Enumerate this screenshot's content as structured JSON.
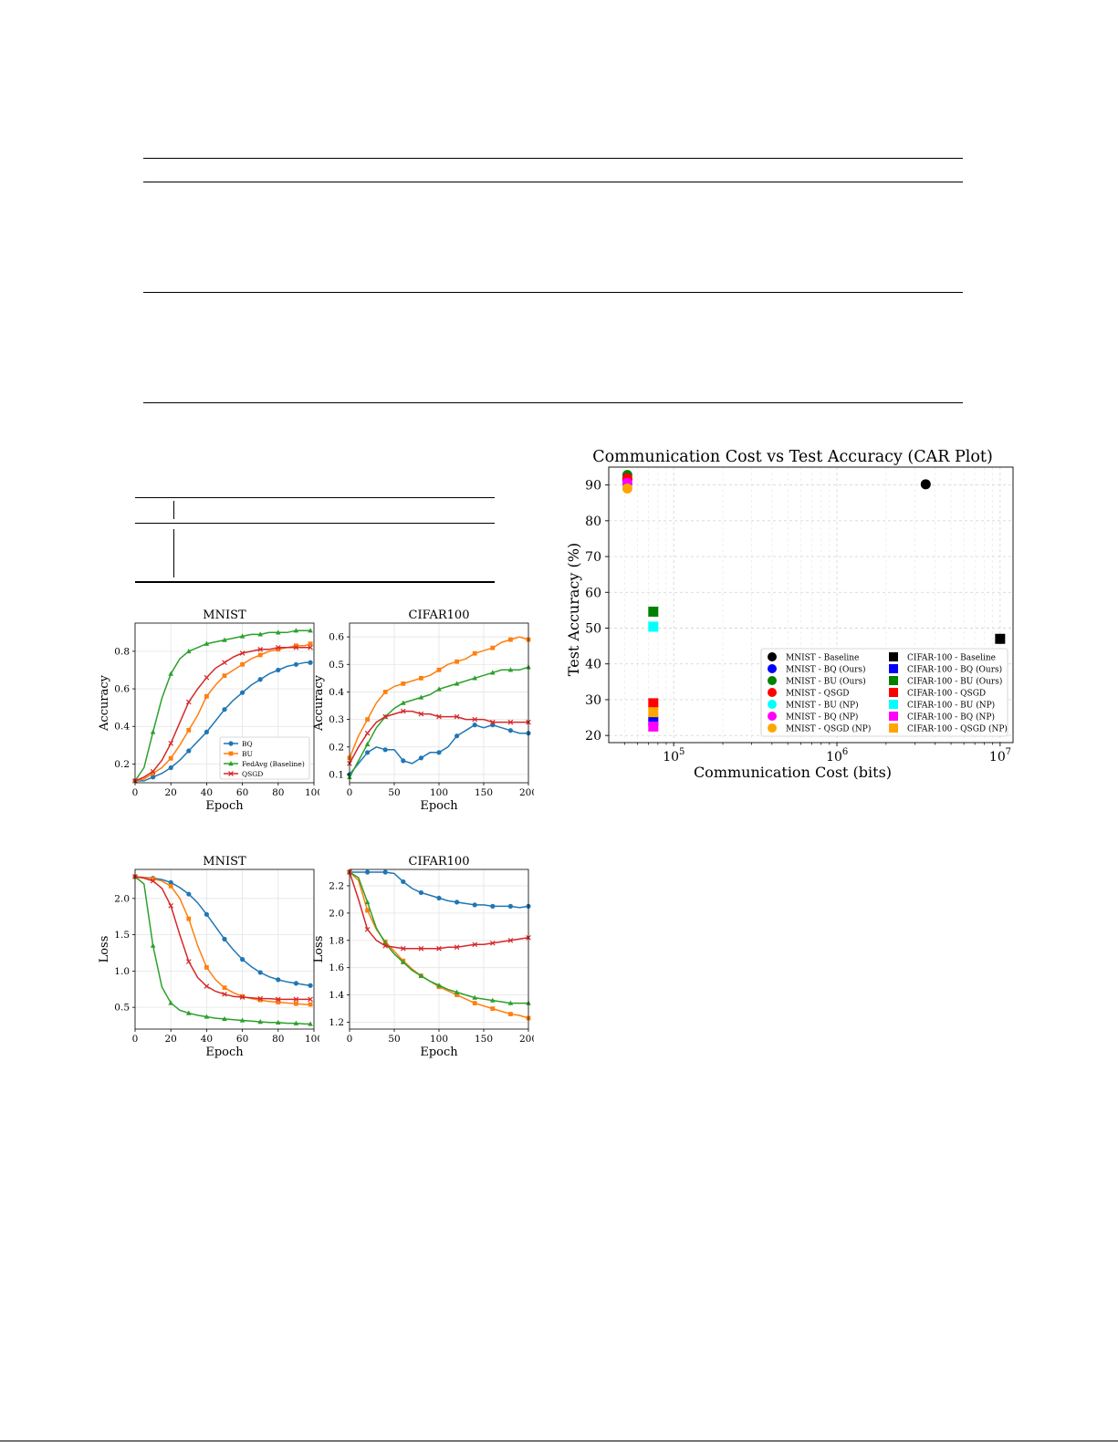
{
  "colors": {
    "bq": "#1f77b4",
    "bu": "#ff7f0e",
    "fedavg": "#2ca02c",
    "qsgd": "#d62728"
  },
  "small_charts": {
    "mnist_acc": {
      "title": "MNIST",
      "xlabel": "Epoch",
      "ylabel": "Accuracy",
      "xticks": [
        "0",
        "20",
        "40",
        "60",
        "80",
        "100"
      ],
      "yticks": [
        "0.2",
        "0.4",
        "0.6",
        "0.8"
      ]
    },
    "cifar_acc": {
      "title": "CIFAR100",
      "xlabel": "Epoch",
      "ylabel": "Accuracy",
      "xticks": [
        "0",
        "50",
        "100",
        "150",
        "200"
      ],
      "yticks": [
        "0.1",
        "0.2",
        "0.3",
        "0.4",
        "0.5",
        "0.6"
      ]
    },
    "mnist_loss": {
      "title": "MNIST",
      "xlabel": "Epoch",
      "ylabel": "Loss",
      "xticks": [
        "0",
        "20",
        "40",
        "60",
        "80",
        "100"
      ],
      "yticks": [
        "0.5",
        "1.0",
        "1.5",
        "2.0"
      ]
    },
    "cifar_loss": {
      "title": "CIFAR100",
      "xlabel": "Epoch",
      "ylabel": "Loss",
      "xticks": [
        "0",
        "50",
        "100",
        "150",
        "200"
      ],
      "yticks": [
        "1.2",
        "1.4",
        "1.6",
        "1.8",
        "2.0",
        "2.2"
      ]
    }
  },
  "small_legend": [
    "BQ",
    "BU",
    "FedAvg (Baseline)",
    "QSGD"
  ],
  "car_plot": {
    "title": "Communication Cost vs Test Accuracy (CAR Plot)",
    "xlabel": "Communication Cost (bits)",
    "ylabel": "Test Accuracy (%)",
    "ytick_labels": [
      "20",
      "30",
      "40",
      "50",
      "60",
      "70",
      "80",
      "90"
    ],
    "xtick_base": "10",
    "xtick_exponents": [
      "5",
      "6",
      "7"
    ],
    "legend_left": [
      "MNIST - Baseline",
      "MNIST - BQ (Ours)",
      "MNIST - BU (Ours)",
      "MNIST - QSGD",
      "MNIST - BU (NP)",
      "MNIST - BQ (NP)",
      "MNIST - QSGD (NP)"
    ],
    "legend_right": [
      "CIFAR-100 - Baseline",
      "CIFAR-100 - BQ (Ours)",
      "CIFAR-100 - BU (Ours)",
      "CIFAR-100 - QSGD",
      "CIFAR-100 - BU (NP)",
      "CIFAR-100 - BQ (NP)",
      "CIFAR-100 - QSGD (NP)"
    ],
    "legend_colors": [
      "#000000",
      "#0000ff",
      "#008000",
      "#ff0000",
      "#00ffff",
      "#ff00ff",
      "#ffa500"
    ]
  },
  "chart_data": [
    {
      "type": "line",
      "title": "MNIST",
      "xlabel": "Epoch",
      "ylabel": "Accuracy",
      "xlim": [
        0,
        100
      ],
      "ylim": [
        0.1,
        0.95
      ],
      "x": [
        0,
        5,
        10,
        15,
        20,
        25,
        30,
        35,
        40,
        45,
        50,
        55,
        60,
        65,
        70,
        75,
        80,
        85,
        90,
        95,
        98
      ],
      "series": [
        {
          "name": "BQ",
          "values": [
            0.11,
            0.11,
            0.13,
            0.15,
            0.18,
            0.22,
            0.27,
            0.32,
            0.37,
            0.43,
            0.49,
            0.54,
            0.58,
            0.62,
            0.65,
            0.68,
            0.7,
            0.72,
            0.73,
            0.74,
            0.74
          ]
        },
        {
          "name": "BU",
          "values": [
            0.11,
            0.12,
            0.15,
            0.18,
            0.23,
            0.3,
            0.38,
            0.46,
            0.56,
            0.62,
            0.67,
            0.7,
            0.73,
            0.76,
            0.78,
            0.8,
            0.81,
            0.82,
            0.83,
            0.83,
            0.84
          ]
        },
        {
          "name": "FedAvg (Baseline)",
          "values": [
            0.11,
            0.18,
            0.37,
            0.55,
            0.68,
            0.76,
            0.8,
            0.82,
            0.84,
            0.85,
            0.86,
            0.87,
            0.88,
            0.89,
            0.89,
            0.9,
            0.9,
            0.9,
            0.91,
            0.91,
            0.91
          ]
        },
        {
          "name": "QSGD",
          "values": [
            0.11,
            0.13,
            0.16,
            0.22,
            0.31,
            0.42,
            0.53,
            0.6,
            0.66,
            0.71,
            0.74,
            0.77,
            0.79,
            0.8,
            0.81,
            0.81,
            0.82,
            0.82,
            0.82,
            0.82,
            0.82
          ]
        }
      ]
    },
    {
      "type": "line",
      "title": "CIFAR100",
      "xlabel": "Epoch",
      "ylabel": "Accuracy",
      "xlim": [
        0,
        200
      ],
      "ylim": [
        0.07,
        0.65
      ],
      "x": [
        0,
        10,
        20,
        30,
        40,
        50,
        60,
        70,
        80,
        90,
        100,
        110,
        120,
        130,
        140,
        150,
        160,
        170,
        180,
        190,
        200
      ],
      "series": [
        {
          "name": "BQ",
          "values": [
            0.1,
            0.14,
            0.18,
            0.2,
            0.19,
            0.19,
            0.15,
            0.14,
            0.16,
            0.18,
            0.18,
            0.2,
            0.24,
            0.26,
            0.28,
            0.27,
            0.28,
            0.27,
            0.26,
            0.25,
            0.25
          ]
        },
        {
          "name": "BU",
          "values": [
            0.16,
            0.24,
            0.3,
            0.36,
            0.4,
            0.42,
            0.43,
            0.44,
            0.45,
            0.46,
            0.48,
            0.5,
            0.51,
            0.52,
            0.54,
            0.55,
            0.56,
            0.58,
            0.59,
            0.6,
            0.59
          ]
        },
        {
          "name": "FedAvg (Baseline)",
          "values": [
            0.09,
            0.15,
            0.21,
            0.27,
            0.31,
            0.34,
            0.36,
            0.37,
            0.38,
            0.39,
            0.41,
            0.42,
            0.43,
            0.44,
            0.45,
            0.46,
            0.47,
            0.48,
            0.48,
            0.48,
            0.49
          ]
        },
        {
          "name": "QSGD",
          "values": [
            0.14,
            0.2,
            0.25,
            0.29,
            0.31,
            0.32,
            0.33,
            0.33,
            0.32,
            0.32,
            0.31,
            0.31,
            0.31,
            0.3,
            0.3,
            0.3,
            0.29,
            0.29,
            0.29,
            0.29,
            0.29
          ]
        }
      ]
    },
    {
      "type": "line",
      "title": "MNIST",
      "xlabel": "Epoch",
      "ylabel": "Loss",
      "xlim": [
        0,
        100
      ],
      "ylim": [
        0.2,
        2.4
      ],
      "x": [
        0,
        5,
        10,
        15,
        20,
        25,
        30,
        35,
        40,
        45,
        50,
        55,
        60,
        65,
        70,
        75,
        80,
        85,
        90,
        95,
        98
      ],
      "series": [
        {
          "name": "BQ",
          "values": [
            2.3,
            2.29,
            2.28,
            2.26,
            2.22,
            2.15,
            2.06,
            1.94,
            1.78,
            1.61,
            1.44,
            1.29,
            1.16,
            1.06,
            0.98,
            0.92,
            0.88,
            0.85,
            0.83,
            0.81,
            0.8
          ]
        },
        {
          "name": "BU",
          "values": [
            2.3,
            2.29,
            2.27,
            2.24,
            2.17,
            2.0,
            1.72,
            1.35,
            1.05,
            0.88,
            0.77,
            0.7,
            0.65,
            0.62,
            0.6,
            0.58,
            0.57,
            0.56,
            0.55,
            0.54,
            0.54
          ]
        },
        {
          "name": "FedAvg (Baseline)",
          "values": [
            2.3,
            2.2,
            1.35,
            0.78,
            0.56,
            0.46,
            0.42,
            0.39,
            0.37,
            0.35,
            0.34,
            0.33,
            0.32,
            0.31,
            0.3,
            0.29,
            0.29,
            0.28,
            0.28,
            0.27,
            0.27
          ]
        },
        {
          "name": "QSGD",
          "values": [
            2.3,
            2.28,
            2.24,
            2.14,
            1.9,
            1.5,
            1.13,
            0.91,
            0.79,
            0.72,
            0.68,
            0.65,
            0.64,
            0.63,
            0.62,
            0.62,
            0.61,
            0.61,
            0.61,
            0.61,
            0.61
          ]
        }
      ]
    },
    {
      "type": "line",
      "title": "CIFAR100",
      "xlabel": "Epoch",
      "ylabel": "Loss",
      "xlim": [
        0,
        200
      ],
      "ylim": [
        1.15,
        2.32
      ],
      "x": [
        0,
        10,
        20,
        30,
        40,
        50,
        60,
        70,
        80,
        90,
        100,
        110,
        120,
        130,
        140,
        150,
        160,
        170,
        180,
        190,
        200
      ],
      "series": [
        {
          "name": "BQ",
          "values": [
            2.3,
            2.3,
            2.3,
            2.3,
            2.3,
            2.29,
            2.23,
            2.18,
            2.15,
            2.13,
            2.11,
            2.09,
            2.08,
            2.07,
            2.06,
            2.06,
            2.05,
            2.05,
            2.05,
            2.04,
            2.05
          ]
        },
        {
          "name": "BU",
          "values": [
            2.3,
            2.24,
            2.02,
            1.88,
            1.79,
            1.72,
            1.65,
            1.59,
            1.54,
            1.5,
            1.46,
            1.43,
            1.4,
            1.37,
            1.34,
            1.32,
            1.3,
            1.28,
            1.26,
            1.25,
            1.23
          ]
        },
        {
          "name": "FedAvg (Baseline)",
          "values": [
            2.3,
            2.26,
            2.08,
            1.89,
            1.78,
            1.7,
            1.64,
            1.58,
            1.54,
            1.5,
            1.47,
            1.44,
            1.42,
            1.4,
            1.38,
            1.37,
            1.36,
            1.35,
            1.34,
            1.34,
            1.34
          ]
        },
        {
          "name": "QSGD",
          "values": [
            2.3,
            2.1,
            1.88,
            1.8,
            1.76,
            1.75,
            1.74,
            1.74,
            1.74,
            1.74,
            1.74,
            1.75,
            1.75,
            1.76,
            1.77,
            1.77,
            1.78,
            1.79,
            1.8,
            1.81,
            1.82
          ]
        }
      ]
    },
    {
      "type": "scatter",
      "title": "Communication Cost vs Test Accuracy (CAR Plot)",
      "xlabel": "Communication Cost (bits)",
      "ylabel": "Test Accuracy (%)",
      "xscale": "log",
      "xlim": [
        40000,
        12000000
      ],
      "ylim": [
        18,
        95
      ],
      "legend_position": "lower-right",
      "grid": true,
      "points": [
        {
          "label": "MNIST - Baseline",
          "x": 3500000,
          "y": 90.2,
          "marker": "circle",
          "color": "#000000"
        },
        {
          "label": "MNIST - BQ (Ours)",
          "x": 52000,
          "y": 91.5,
          "marker": "circle",
          "color": "#0000ff"
        },
        {
          "label": "MNIST - BU (Ours)",
          "x": 52000,
          "y": 92.8,
          "marker": "circle",
          "color": "#008000"
        },
        {
          "label": "MNIST - QSGD",
          "x": 52000,
          "y": 91.9,
          "marker": "circle",
          "color": "#ff0000"
        },
        {
          "label": "MNIST - BU (NP)",
          "x": 52000,
          "y": 90.0,
          "marker": "circle",
          "color": "#00ffff"
        },
        {
          "label": "MNIST - BQ (NP)",
          "x": 52000,
          "y": 90.6,
          "marker": "circle",
          "color": "#ff00ff"
        },
        {
          "label": "MNIST - QSGD (NP)",
          "x": 52000,
          "y": 89.0,
          "marker": "circle",
          "color": "#ffa500"
        },
        {
          "label": "CIFAR-100 - Baseline",
          "x": 10000000,
          "y": 47.0,
          "marker": "square",
          "color": "#000000"
        },
        {
          "label": "CIFAR-100 - BQ (Ours)",
          "x": 75000,
          "y": 24.0,
          "marker": "square",
          "color": "#0000ff"
        },
        {
          "label": "CIFAR-100 - BU (Ours)",
          "x": 75000,
          "y": 54.6,
          "marker": "square",
          "color": "#008000"
        },
        {
          "label": "CIFAR-100 - QSGD",
          "x": 75000,
          "y": 29.0,
          "marker": "square",
          "color": "#ff0000"
        },
        {
          "label": "CIFAR-100 - BU (NP)",
          "x": 75000,
          "y": 50.4,
          "marker": "square",
          "color": "#00ffff"
        },
        {
          "label": "CIFAR-100 - BQ (NP)",
          "x": 75000,
          "y": 22.5,
          "marker": "square",
          "color": "#ff00ff"
        },
        {
          "label": "CIFAR-100 - QSGD (NP)",
          "x": 75000,
          "y": 26.5,
          "marker": "square",
          "color": "#ffa500"
        }
      ]
    }
  ]
}
